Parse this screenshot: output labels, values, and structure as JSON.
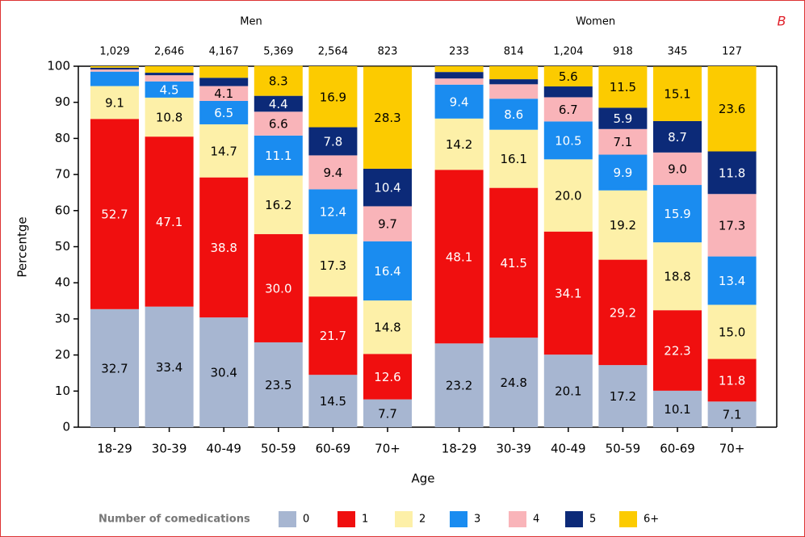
{
  "chart_data": {
    "type": "stacked-bar",
    "panel_label": "B",
    "groups": [
      "Men",
      "Women"
    ],
    "categories": [
      "18-29",
      "30-39",
      "40-49",
      "50-59",
      "60-69",
      "70+",
      "18-29",
      "30-39",
      "40-49",
      "50-59",
      "60-69",
      "70+"
    ],
    "sample_sizes": [
      {
        "value": 1029,
        "label": "1,029"
      },
      {
        "value": 2646,
        "label": "2,646"
      },
      {
        "value": 4167,
        "label": "4,167"
      },
      {
        "value": 5369,
        "label": "5,369"
      },
      {
        "value": 2564,
        "label": "2,564"
      },
      823,
      233,
      814,
      {
        "value": 1204,
        "label": "1,204"
      },
      918,
      345,
      127
    ],
    "xlabel": "Age",
    "ylabel": "Percentge",
    "ylim": [
      0,
      100
    ],
    "yticks": [
      0,
      10,
      20,
      30,
      40,
      50,
      60,
      70,
      80,
      90,
      100
    ],
    "legend_title": "Number of comedications",
    "series": [
      {
        "name": "0",
        "color": "#a7b6d1",
        "values": [
          32.7,
          33.4,
          30.4,
          23.5,
          14.5,
          7.7,
          23.2,
          24.8,
          20.1,
          17.2,
          10.1,
          7.1
        ],
        "value_labels": [
          "32.7",
          "33.4",
          "30.4",
          "23.5",
          "14.5",
          "7.7",
          "23.2",
          "24.8",
          "20.1",
          "17.2",
          "10.1",
          "7.1"
        ]
      },
      {
        "name": "1",
        "color": "#f00f0f",
        "values": [
          52.7,
          47.1,
          38.8,
          30.0,
          21.7,
          12.6,
          48.1,
          41.5,
          34.1,
          29.2,
          22.3,
          11.8
        ],
        "value_labels": [
          "52.7",
          "47.1",
          "38.8",
          "30.0",
          "21.7",
          "12.6",
          "48.1",
          "41.5",
          "34.1",
          "29.2",
          "22.3",
          "11.8"
        ]
      },
      {
        "name": "2",
        "color": "#fdf0a8",
        "values": [
          9.1,
          10.8,
          14.7,
          16.2,
          17.3,
          14.8,
          14.2,
          16.1,
          20.0,
          19.2,
          18.8,
          15.0
        ],
        "value_labels": [
          "9.1",
          "10.8",
          "14.7",
          "16.2",
          "17.3",
          "14.8",
          "14.2",
          "16.1",
          "20.0",
          "19.2",
          "18.8",
          "15.0"
        ]
      },
      {
        "name": "3",
        "color": "#1a8cf0",
        "values": [
          4.0,
          4.5,
          6.5,
          11.1,
          12.4,
          16.4,
          9.4,
          8.6,
          10.5,
          9.9,
          15.9,
          13.4
        ],
        "value_labels": [
          null,
          "4.5",
          "6.5",
          "11.1",
          "12.4",
          "16.4",
          "9.4",
          "8.6",
          "10.5",
          "9.9",
          "15.9",
          "13.4"
        ]
      },
      {
        "name": "4",
        "color": "#f9b4b9",
        "values": [
          0.6,
          1.7,
          4.1,
          6.6,
          9.4,
          9.7,
          1.7,
          4.0,
          6.7,
          7.1,
          9.0,
          17.3
        ],
        "value_labels": [
          null,
          null,
          "4.1",
          "6.6",
          "9.4",
          "9.7",
          null,
          null,
          "6.7",
          "7.1",
          "9.0",
          "17.3"
        ]
      },
      {
        "name": "5",
        "color": "#0c2a78",
        "values": [
          0.5,
          0.7,
          2.3,
          4.4,
          7.8,
          10.4,
          1.8,
          1.4,
          3.0,
          5.9,
          8.7,
          11.8
        ],
        "value_labels": [
          null,
          null,
          null,
          "4.4",
          "7.8",
          "10.4",
          null,
          null,
          null,
          "5.9",
          "8.7",
          "11.8"
        ]
      },
      {
        "name": "6+",
        "color": "#fccb00",
        "values": [
          0.4,
          1.8,
          3.2,
          8.3,
          16.9,
          28.3,
          1.6,
          3.6,
          5.6,
          11.5,
          15.1,
          23.6
        ],
        "value_labels": [
          null,
          null,
          null,
          "8.3",
          "16.9",
          "28.3",
          null,
          null,
          "5.6",
          "11.5",
          "15.1",
          "23.6"
        ]
      }
    ]
  }
}
